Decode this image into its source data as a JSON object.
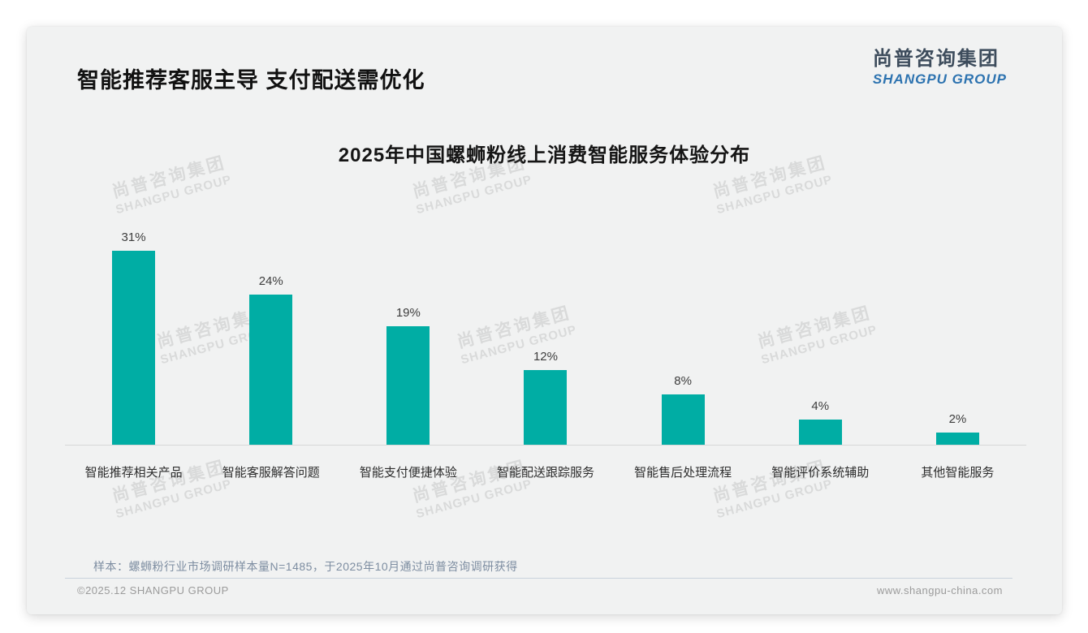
{
  "page": {
    "heading": "智能推荐客服主导 支付配送需优化",
    "logo": {
      "cn": "尚普咨询集团",
      "en": "SHANGPU GROUP"
    },
    "watermark": {
      "cn": "尚普咨询集团",
      "en": "SHANGPU GROUP"
    },
    "footnote": "样本：螺蛳粉行业市场调研样本量N=1485，于2025年10月通过尚普咨询调研获得",
    "footer": {
      "left": "©2025.12 SHANGPU GROUP",
      "right": "www.shangpu-china.com"
    }
  },
  "colors": {
    "bar": "#00ada4",
    "logo_en_blue": "#2d73b0",
    "logo_cn_dark": "#3d4c5c",
    "card_background": "#f1f2f2"
  },
  "chart_data": {
    "type": "bar",
    "title": "2025年中国螺蛳粉线上消费智能服务体验分布",
    "categories": [
      "智能推荐相关产品",
      "智能客服解答问题",
      "智能支付便捷体验",
      "智能配送跟踪服务",
      "智能售后处理流程",
      "智能评价系统辅助",
      "其他智能服务"
    ],
    "values": [
      31,
      24,
      19,
      12,
      8,
      4,
      2
    ],
    "value_labels": [
      "31%",
      "24%",
      "19%",
      "12%",
      "8%",
      "4%",
      "2%"
    ],
    "unit": "%",
    "bar_color": "#00ada4",
    "xlabel": "",
    "ylabel": "",
    "ylim": [
      0,
      35
    ],
    "grid": false,
    "legend": false,
    "value_labels_position": "above-bars"
  }
}
